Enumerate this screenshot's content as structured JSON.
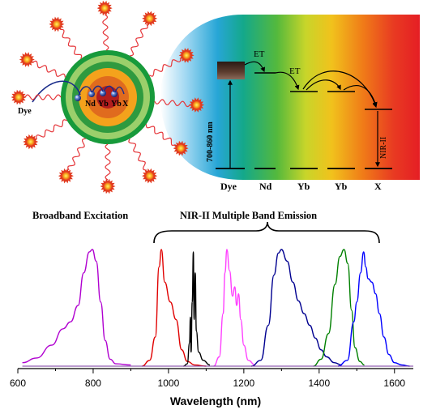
{
  "labels": {
    "dye_small": "Dye",
    "core_nd": "Nd",
    "core_yb1": "Yb",
    "core_yb2": "Yb",
    "core_x": "X",
    "et1": "ET",
    "et2": "ET",
    "excitation_range": "700-860 nm",
    "nir_ii": "NIR-II",
    "level_dye": "Dye",
    "level_nd": "Nd",
    "level_yb1": "Yb",
    "level_yb2": "Yb",
    "level_x": "X",
    "broadband": "Broadband Excitation",
    "emission": "NIR-II Multiple Band Emission"
  },
  "chart_data": {
    "type": "line",
    "xlabel": "Wavelength (nm)",
    "ylabel": "",
    "xlim": [
      600,
      1650
    ],
    "xticks": [
      "600",
      "800",
      "1000",
      "1200",
      "1400",
      "1600"
    ],
    "y_axis_shown": false,
    "series": [
      {
        "color": "#b000d0",
        "peak_nm": 795,
        "points": [
          [
            612,
            0.03
          ],
          [
            650,
            0.07
          ],
          [
            690,
            0.18
          ],
          [
            720,
            0.32
          ],
          [
            740,
            0.38
          ],
          [
            760,
            0.52
          ],
          [
            775,
            0.8
          ],
          [
            790,
            0.98
          ],
          [
            798,
            1.0
          ],
          [
            808,
            0.9
          ],
          [
            820,
            0.55
          ],
          [
            832,
            0.22
          ],
          [
            845,
            0.06
          ],
          [
            860,
            0.02
          ],
          [
            900,
            0.01
          ]
        ]
      },
      {
        "color": "#e00000",
        "peak_nm": 980,
        "points": [
          [
            930,
            0.0
          ],
          [
            950,
            0.05
          ],
          [
            965,
            0.25
          ],
          [
            975,
            0.85
          ],
          [
            981,
            1.0
          ],
          [
            990,
            0.72
          ],
          [
            1005,
            0.55
          ],
          [
            1020,
            0.4
          ],
          [
            1035,
            0.14
          ],
          [
            1050,
            0.04
          ],
          [
            1070,
            0.01
          ],
          [
            1100,
            0.0
          ]
        ]
      },
      {
        "color": "#000000",
        "peak_nm": 1065,
        "points": [
          [
            1040,
            0.0
          ],
          [
            1050,
            0.02
          ],
          [
            1056,
            0.2
          ],
          [
            1058,
            0.42
          ],
          [
            1060,
            0.12
          ],
          [
            1063,
            0.55
          ],
          [
            1066,
            0.98
          ],
          [
            1068,
            0.4
          ],
          [
            1071,
            0.8
          ],
          [
            1074,
            0.3
          ],
          [
            1080,
            0.12
          ],
          [
            1092,
            0.05
          ],
          [
            1110,
            0.01
          ]
        ]
      },
      {
        "color": "#ff40ff",
        "peak_nm": 1155,
        "points": [
          [
            1120,
            0.0
          ],
          [
            1135,
            0.08
          ],
          [
            1145,
            0.45
          ],
          [
            1150,
            0.8
          ],
          [
            1155,
            1.0
          ],
          [
            1162,
            0.82
          ],
          [
            1170,
            0.6
          ],
          [
            1176,
            0.68
          ],
          [
            1181,
            0.52
          ],
          [
            1186,
            0.62
          ],
          [
            1192,
            0.4
          ],
          [
            1200,
            0.18
          ],
          [
            1212,
            0.05
          ],
          [
            1230,
            0.01
          ]
        ]
      },
      {
        "color": "#000090",
        "peak_nm": 1300,
        "points": [
          [
            1220,
            0.0
          ],
          [
            1245,
            0.05
          ],
          [
            1265,
            0.35
          ],
          [
            1280,
            0.78
          ],
          [
            1292,
            0.97
          ],
          [
            1300,
            1.0
          ],
          [
            1315,
            0.9
          ],
          [
            1330,
            0.72
          ],
          [
            1345,
            0.56
          ],
          [
            1360,
            0.45
          ],
          [
            1375,
            0.35
          ],
          [
            1390,
            0.24
          ],
          [
            1405,
            0.14
          ],
          [
            1420,
            0.08
          ],
          [
            1440,
            0.03
          ],
          [
            1460,
            0.01
          ]
        ]
      },
      {
        "color": "#008000",
        "peak_nm": 1465,
        "points": [
          [
            1385,
            0.0
          ],
          [
            1405,
            0.06
          ],
          [
            1425,
            0.28
          ],
          [
            1442,
            0.7
          ],
          [
            1455,
            0.94
          ],
          [
            1466,
            1.0
          ],
          [
            1476,
            0.88
          ],
          [
            1486,
            0.48
          ],
          [
            1495,
            0.16
          ],
          [
            1508,
            0.04
          ],
          [
            1520,
            0.01
          ]
        ]
      },
      {
        "color": "#0000ff",
        "peak_nm": 1525,
        "points": [
          [
            1450,
            0.0
          ],
          [
            1475,
            0.05
          ],
          [
            1492,
            0.38
          ],
          [
            1500,
            0.55
          ],
          [
            1510,
            0.8
          ],
          [
            1518,
            0.98
          ],
          [
            1524,
            0.85
          ],
          [
            1530,
            0.75
          ],
          [
            1540,
            0.72
          ],
          [
            1550,
            0.62
          ],
          [
            1560,
            0.45
          ],
          [
            1572,
            0.25
          ],
          [
            1585,
            0.1
          ],
          [
            1600,
            0.03
          ],
          [
            1620,
            0.01
          ],
          [
            1640,
            0.0
          ]
        ]
      }
    ]
  }
}
